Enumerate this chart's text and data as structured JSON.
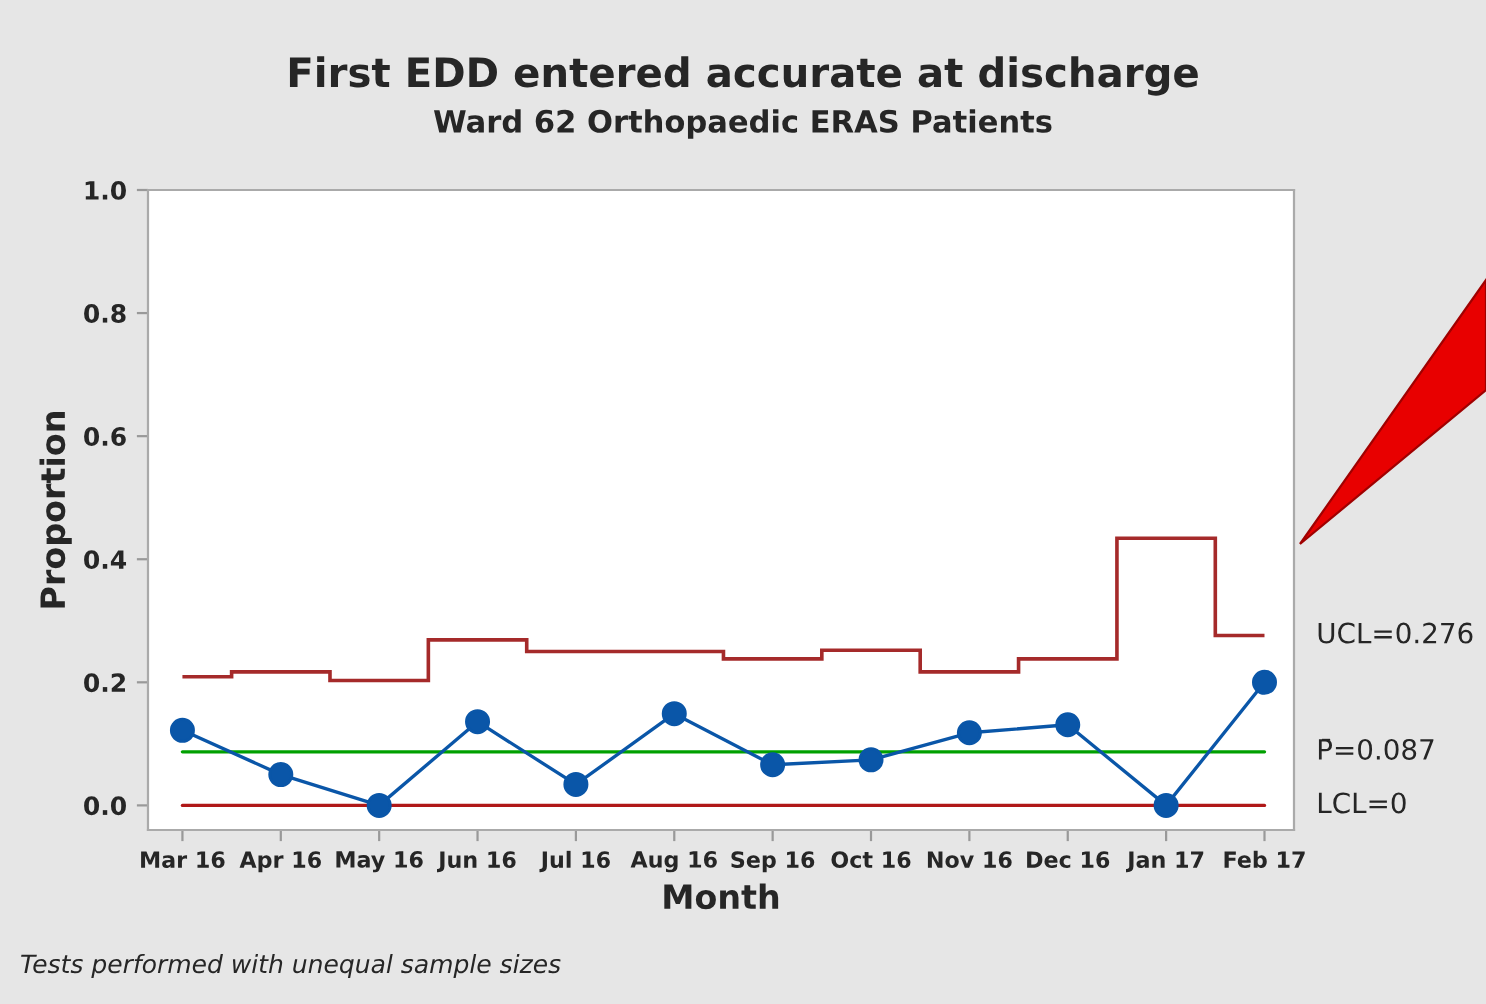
{
  "chart_data": {
    "type": "line",
    "title": "First EDD entered accurate at discharge",
    "subtitle": "Ward 62 Orthopaedic ERAS Patients",
    "xlabel": "Month",
    "ylabel": "Proportion",
    "categories": [
      "Mar 16",
      "Apr 16",
      "May 16",
      "Jun 16",
      "Jul 16",
      "Aug 16",
      "Sep 16",
      "Oct 16",
      "Nov 16",
      "Dec 16",
      "Jan 17",
      "Feb 17"
    ],
    "series": [
      {
        "color": "#0a56a8",
        "marker": "circle",
        "values": [
          0.122,
          0.05,
          0.0,
          0.136,
          0.034,
          0.149,
          0.066,
          0.074,
          0.118,
          0.131,
          0.0,
          0.2
        ]
      },
      {
        "type": "step",
        "name": "UCL=0.276",
        "color": "#a52a2a",
        "values": [
          0.209,
          0.217,
          0.203,
          0.269,
          0.25,
          0.25,
          0.238,
          0.252,
          0.217,
          0.238,
          0.434,
          0.276
        ]
      }
    ],
    "ref_lines": [
      {
        "axis": "y",
        "value": 0.087,
        "label": "P̄=0.087",
        "color": "#00a000"
      },
      {
        "axis": "y",
        "value": 0,
        "label": "LCL=0",
        "color": "#b01818"
      }
    ],
    "ylim": [
      -0.04,
      1.0
    ],
    "yticks": [
      {
        "value": 0,
        "label": "0.0"
      },
      0.2,
      0.4,
      0.6,
      0.8,
      {
        "value": 1,
        "label": "1.0"
      }
    ],
    "grid": false,
    "legend": false,
    "annotations": [
      "Tests performed with unequal sample sizes"
    ]
  }
}
